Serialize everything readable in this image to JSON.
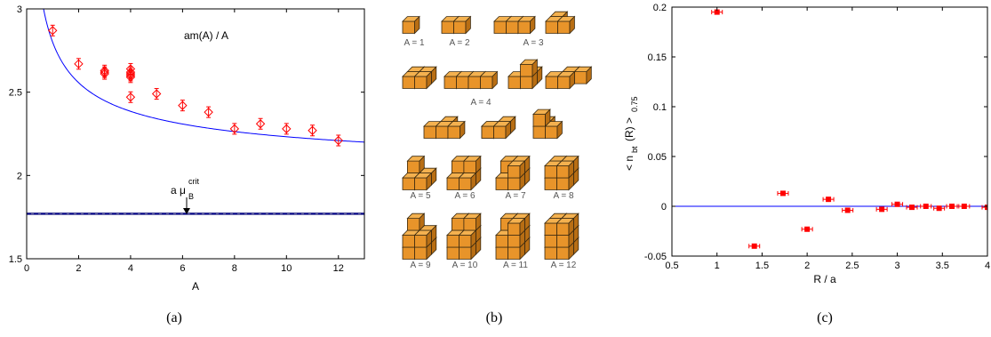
{
  "panel_captions": [
    "(a)",
    "(b)",
    "(c)"
  ],
  "chart_data": [
    {
      "type": "scatter",
      "panel": "(a)",
      "xlabel": "A",
      "ylabel": "",
      "xlim": [
        0,
        13
      ],
      "ylim": [
        1.5,
        3
      ],
      "xticks": [
        0,
        2,
        4,
        6,
        8,
        10,
        12
      ],
      "yticks": [
        1.5,
        2,
        2.5,
        3
      ],
      "grid": false,
      "annotations": [
        {
          "text": "am(A) / A"
        },
        {
          "text": "a μ",
          "sub": "B",
          "sup": "crit"
        }
      ],
      "points": {
        "x": [
          1,
          2,
          3,
          3,
          3,
          4,
          4,
          4,
          4,
          4,
          4,
          5,
          6,
          7,
          8,
          9,
          10,
          11,
          12
        ],
        "y": [
          2.87,
          2.67,
          2.63,
          2.62,
          2.61,
          2.64,
          2.62,
          2.61,
          2.6,
          2.59,
          2.47,
          2.49,
          2.42,
          2.38,
          2.28,
          2.31,
          2.28,
          2.27,
          2.21
        ],
        "color": "#ff0000"
      },
      "curve": {
        "color": "#0000ff",
        "description_points": {
          "x": [
            0.2,
            1,
            2,
            4,
            6,
            8,
            10,
            13
          ],
          "y": [
            3.0,
            2.8,
            2.63,
            2.45,
            2.37,
            2.31,
            2.27,
            2.22
          ]
        }
      },
      "hline": {
        "y": 1.77,
        "color": "#00008b",
        "dashed": true
      }
    },
    {
      "type": "diagram",
      "panel": "(b)",
      "labels": [
        "A = 1",
        "A = 2",
        "A = 3",
        "A = 4",
        "A = 5",
        "A = 6",
        "A = 7",
        "A = 8",
        "A = 9",
        "A = 10",
        "A = 11",
        "A = 12"
      ],
      "cube_colors": {
        "front": "#e8942a",
        "top": "#f4b14f",
        "side": "#b86e14",
        "edge": "#3b2a10"
      }
    },
    {
      "type": "scatter",
      "panel": "(c)",
      "xlabel": "R / a",
      "ylabel": "< n",
      "ylabel_sub": "bt",
      "ylabel_rest": "(R) >",
      "ylabel_sub2": "0.75",
      "xlim": [
        0.5,
        4
      ],
      "ylim": [
        -0.05,
        0.2
      ],
      "xticks": [
        0.5,
        1,
        1.5,
        2,
        2.5,
        3,
        3.5,
        4
      ],
      "yticks": [
        -0.05,
        0,
        0.05,
        0.1,
        0.15,
        0.2
      ],
      "grid": false,
      "points": {
        "x": [
          1,
          1.414,
          1.732,
          2,
          2.236,
          2.449,
          2.828,
          3,
          3.162,
          3.317,
          3.464,
          3.606,
          3.742,
          4
        ],
        "y": [
          0.195,
          -0.04,
          0.013,
          -0.023,
          0.007,
          -0.004,
          -0.003,
          0.002,
          -0.001,
          0.0,
          -0.002,
          0.0,
          0.0,
          -0.001
        ],
        "color": "#ff0000"
      },
      "hline": {
        "y": 0,
        "color": "#0000ff"
      }
    }
  ]
}
